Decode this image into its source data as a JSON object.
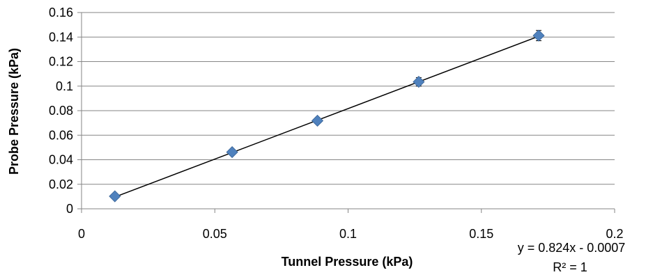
{
  "chart_data": {
    "type": "scatter",
    "title": "",
    "xlabel": "Tunnel Pressure (kPa)",
    "ylabel": "Probe Pressure (kPa)",
    "xlim": [
      0,
      0.2
    ],
    "ylim": [
      0,
      0.16
    ],
    "x_ticks": [
      "0",
      "0.05",
      "0.1",
      "0.15",
      "0.2"
    ],
    "y_ticks": [
      "0",
      "0.02",
      "0.04",
      "0.06",
      "0.08",
      "0.1",
      "0.12",
      "0.14",
      "0.16"
    ],
    "grid": "horizontal",
    "legend": "none",
    "marker": "diamond",
    "marker_color": "#4F81BD",
    "error_bars": true,
    "series": [
      {
        "x": [
          0.0125,
          0.0565,
          0.0885,
          0.1265,
          0.1715
        ],
        "y": [
          0.0102,
          0.0462,
          0.0718,
          0.1035,
          0.1412
        ],
        "yerr": [
          0.0012,
          0.0018,
          0.0022,
          0.0035,
          0.0042
        ]
      }
    ],
    "trendline": {
      "type": "linear",
      "slope": 0.824,
      "intercept": -0.0007,
      "x_range": [
        0.0125,
        0.1715
      ],
      "color": "#000000",
      "equation": "y = 0.824x - 0.0007",
      "r_squared": "R² = 1"
    }
  }
}
